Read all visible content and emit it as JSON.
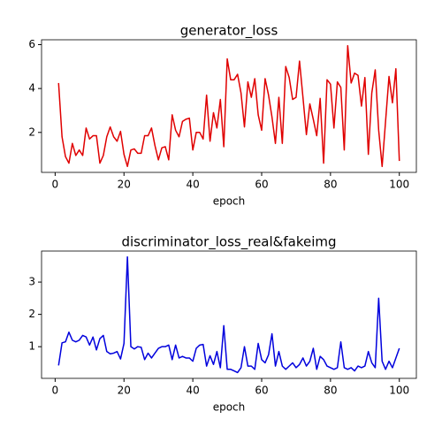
{
  "chart_data": [
    {
      "type": "line",
      "title": "generator_loss",
      "xlabel": "epoch",
      "x": [
        1,
        2,
        3,
        4,
        5,
        6,
        7,
        8,
        9,
        10,
        11,
        12,
        13,
        14,
        15,
        16,
        17,
        18,
        19,
        20,
        21,
        22,
        23,
        24,
        25,
        26,
        27,
        28,
        29,
        30,
        31,
        32,
        33,
        34,
        35,
        36,
        37,
        38,
        39,
        40,
        41,
        42,
        43,
        44,
        45,
        46,
        47,
        48,
        49,
        50,
        51,
        52,
        53,
        54,
        55,
        56,
        57,
        58,
        59,
        60,
        61,
        62,
        63,
        64,
        65,
        66,
        67,
        68,
        69,
        70,
        71,
        72,
        73,
        74,
        75,
        76,
        77,
        78,
        79,
        80,
        81,
        82,
        83,
        84,
        85,
        86,
        87,
        88,
        89,
        90,
        91,
        92,
        93,
        94,
        95,
        96,
        97,
        98,
        99,
        100
      ],
      "series": [
        {
          "color": "#e00000",
          "values": [
            4.25,
            1.8,
            0.9,
            0.6,
            1.5,
            0.95,
            1.2,
            0.95,
            2.2,
            1.7,
            1.85,
            1.85,
            0.6,
            0.95,
            1.8,
            2.25,
            1.8,
            1.6,
            2.05,
            1.0,
            0.45,
            1.2,
            1.25,
            1.05,
            1.05,
            1.85,
            1.85,
            2.2,
            1.4,
            0.75,
            1.3,
            1.35,
            0.75,
            2.8,
            2.1,
            1.8,
            2.5,
            2.6,
            2.65,
            1.2,
            2.0,
            2.0,
            1.7,
            3.7,
            1.6,
            2.9,
            2.2,
            3.5,
            1.35,
            5.35,
            4.4,
            4.4,
            4.65,
            3.8,
            2.25,
            4.3,
            3.6,
            4.45,
            2.8,
            2.1,
            4.45,
            3.7,
            2.7,
            1.5,
            3.6,
            1.5,
            5.0,
            4.5,
            3.5,
            3.6,
            5.25,
            3.6,
            1.9,
            3.3,
            2.6,
            1.85,
            3.55,
            0.6,
            4.4,
            4.2,
            2.2,
            4.3,
            4.05,
            1.2,
            5.95,
            4.25,
            4.7,
            4.6,
            3.2,
            4.5,
            1.0,
            3.8,
            4.85,
            2.1,
            0.45,
            2.5,
            4.55,
            3.35,
            4.9,
            0.7
          ]
        }
      ],
      "xlim": [
        -3.95,
        104.95
      ],
      "xticks": [
        0,
        20,
        40,
        60,
        80,
        100
      ],
      "ylim": [
        0.18,
        6.22
      ],
      "yticks": [
        2,
        4,
        6
      ]
    },
    {
      "type": "line",
      "title": "discriminator_loss_real&fakeimg",
      "xlabel": "epoch",
      "x": [
        1,
        2,
        3,
        4,
        5,
        6,
        7,
        8,
        9,
        10,
        11,
        12,
        13,
        14,
        15,
        16,
        17,
        18,
        19,
        20,
        21,
        22,
        23,
        24,
        25,
        26,
        27,
        28,
        29,
        30,
        31,
        32,
        33,
        34,
        35,
        36,
        37,
        38,
        39,
        40,
        41,
        42,
        43,
        44,
        45,
        46,
        47,
        48,
        49,
        50,
        51,
        52,
        53,
        54,
        55,
        56,
        57,
        58,
        59,
        60,
        61,
        62,
        63,
        64,
        65,
        66,
        67,
        68,
        69,
        70,
        71,
        72,
        73,
        74,
        75,
        76,
        77,
        78,
        79,
        80,
        81,
        82,
        83,
        84,
        85,
        86,
        87,
        88,
        89,
        90,
        91,
        92,
        93,
        94,
        95,
        96,
        97,
        98,
        99,
        100
      ],
      "series": [
        {
          "color": "#0000dd",
          "values": [
            0.42,
            1.12,
            1.15,
            1.45,
            1.2,
            1.15,
            1.2,
            1.35,
            1.3,
            1.05,
            1.3,
            0.9,
            1.25,
            1.35,
            0.85,
            0.78,
            0.8,
            0.85,
            0.62,
            1.1,
            3.78,
            1.0,
            0.93,
            1.0,
            0.98,
            0.6,
            0.8,
            0.65,
            0.8,
            0.95,
            1.0,
            1.0,
            1.05,
            0.6,
            1.05,
            0.65,
            0.7,
            0.65,
            0.65,
            0.55,
            0.95,
            1.05,
            1.07,
            0.4,
            0.72,
            0.45,
            0.85,
            0.35,
            1.65,
            0.3,
            0.3,
            0.25,
            0.2,
            0.35,
            1.0,
            0.4,
            0.4,
            0.3,
            1.1,
            0.6,
            0.5,
            0.75,
            1.4,
            0.4,
            0.85,
            0.4,
            0.3,
            0.4,
            0.5,
            0.35,
            0.45,
            0.65,
            0.4,
            0.55,
            0.95,
            0.3,
            0.7,
            0.6,
            0.4,
            0.35,
            0.3,
            0.35,
            1.15,
            0.35,
            0.3,
            0.35,
            0.25,
            0.4,
            0.35,
            0.4,
            0.85,
            0.5,
            0.35,
            2.5,
            0.55,
            0.3,
            0.55,
            0.35,
            0.65,
            0.95
          ]
        }
      ],
      "xlim": [
        -3.95,
        104.95
      ],
      "xticks": [
        0,
        20,
        40,
        60,
        80,
        100
      ],
      "ylim": [
        0.02,
        3.96
      ],
      "yticks": [
        1,
        2,
        3
      ]
    }
  ]
}
